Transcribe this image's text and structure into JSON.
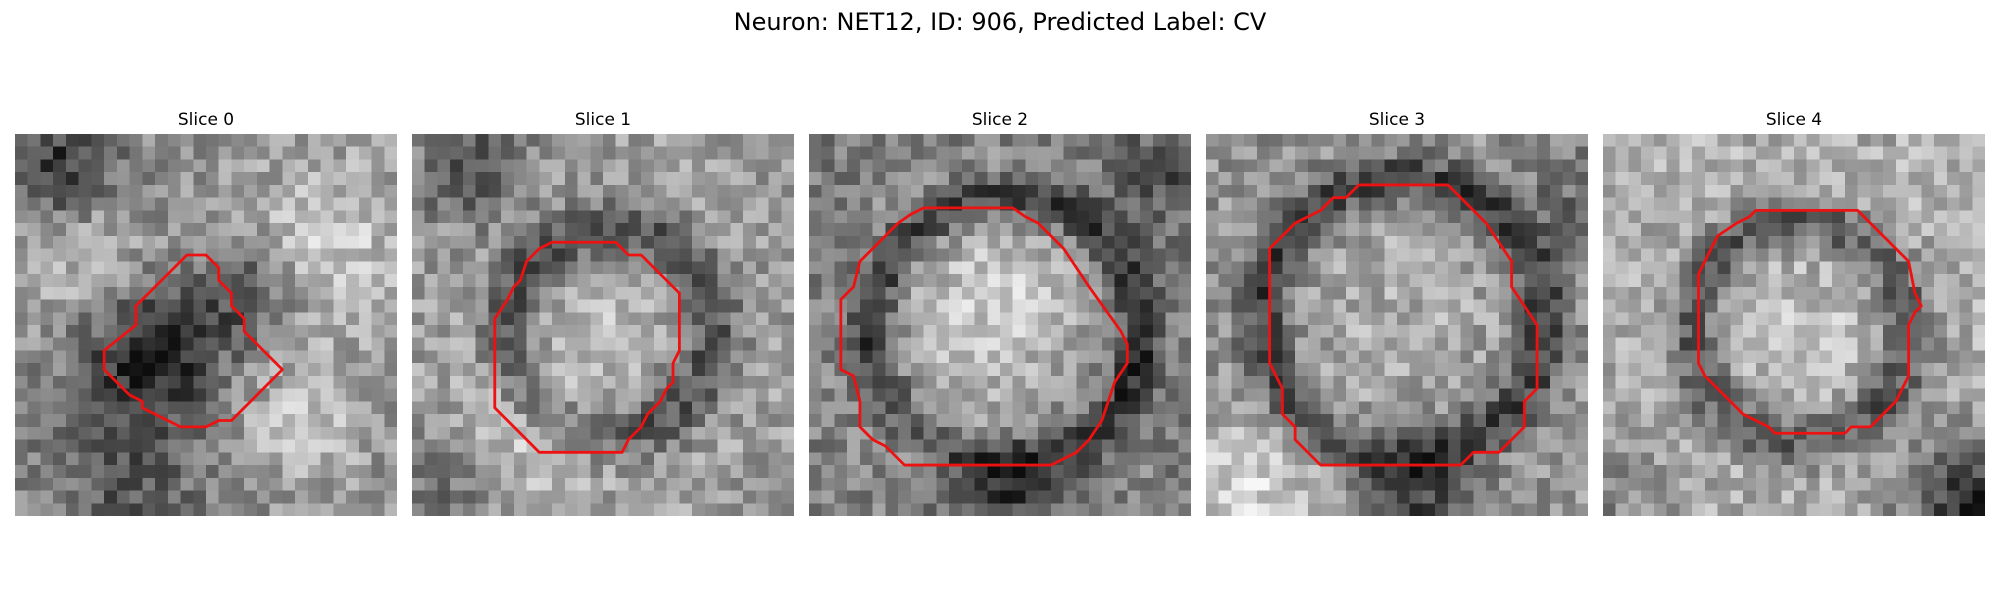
{
  "figure": {
    "title": "Neuron: NET12, ID: 906, Predicted Label: CV"
  },
  "panels": [
    {
      "title": "Slice 0"
    },
    {
      "title": "Slice 1"
    },
    {
      "title": "Slice 2"
    },
    {
      "title": "Slice 3"
    },
    {
      "title": "Slice 4"
    }
  ],
  "colors": {
    "contour": "#ee1111",
    "background": "#ffffff"
  }
}
